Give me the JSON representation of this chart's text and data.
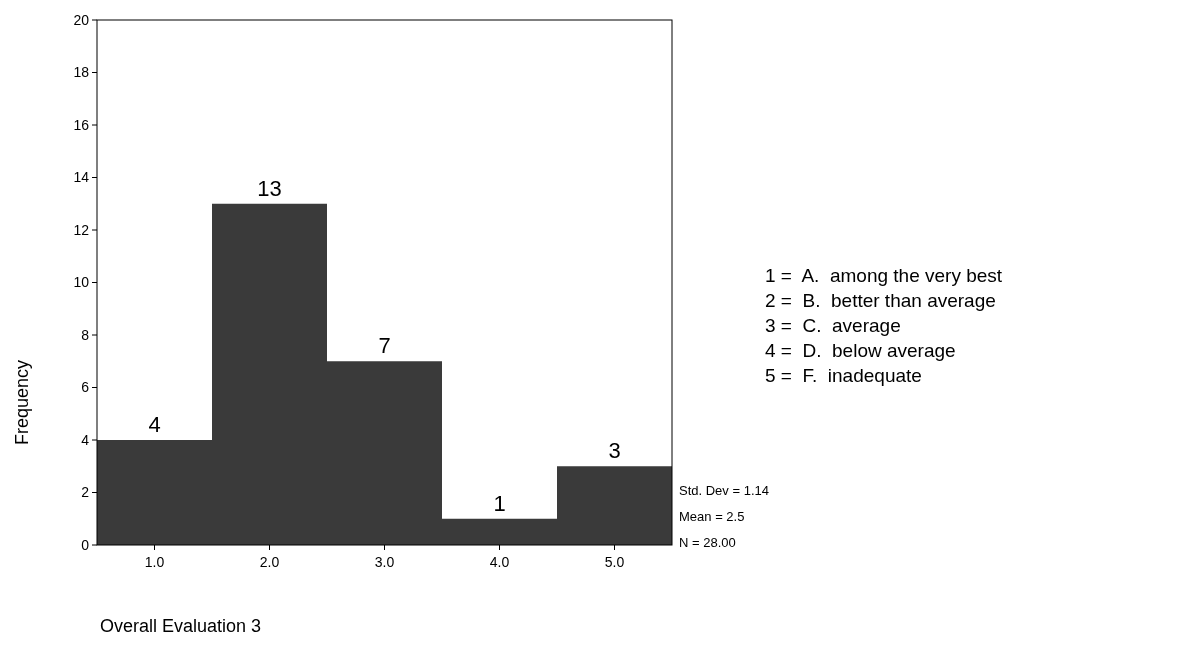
{
  "chart_data": {
    "type": "histogram",
    "xlabel": "Overall Evaluation 3",
    "ylabel": "Frequency",
    "bins": [
      0.5,
      1.5,
      2.5,
      3.5,
      4.5,
      5.5
    ],
    "values": [
      4,
      13,
      7,
      1,
      3
    ],
    "color": "#3a3a3a",
    "data_labels": true,
    "xlim": [
      0.5,
      5.5
    ],
    "xticks": [
      {
        "value": 1,
        "label": "1.0"
      },
      {
        "value": 2,
        "label": "2.0"
      },
      {
        "value": 3,
        "label": "3.0"
      },
      {
        "value": 4,
        "label": "4.0"
      },
      {
        "value": 5,
        "label": "5.0"
      }
    ],
    "ylim": [
      0,
      20
    ],
    "yticks": [
      0,
      2,
      4,
      6,
      8,
      10,
      12,
      14,
      16,
      18,
      20
    ],
    "annotations": [
      "1 =  A.  among the very best",
      "2 =  B.  better than average",
      "3 =  C.  average",
      "4 =  D.  below average",
      "5 =  F.  inadequate",
      "Std. Dev = 1.14",
      "Mean = 2.5",
      "N = 28.00"
    ]
  }
}
